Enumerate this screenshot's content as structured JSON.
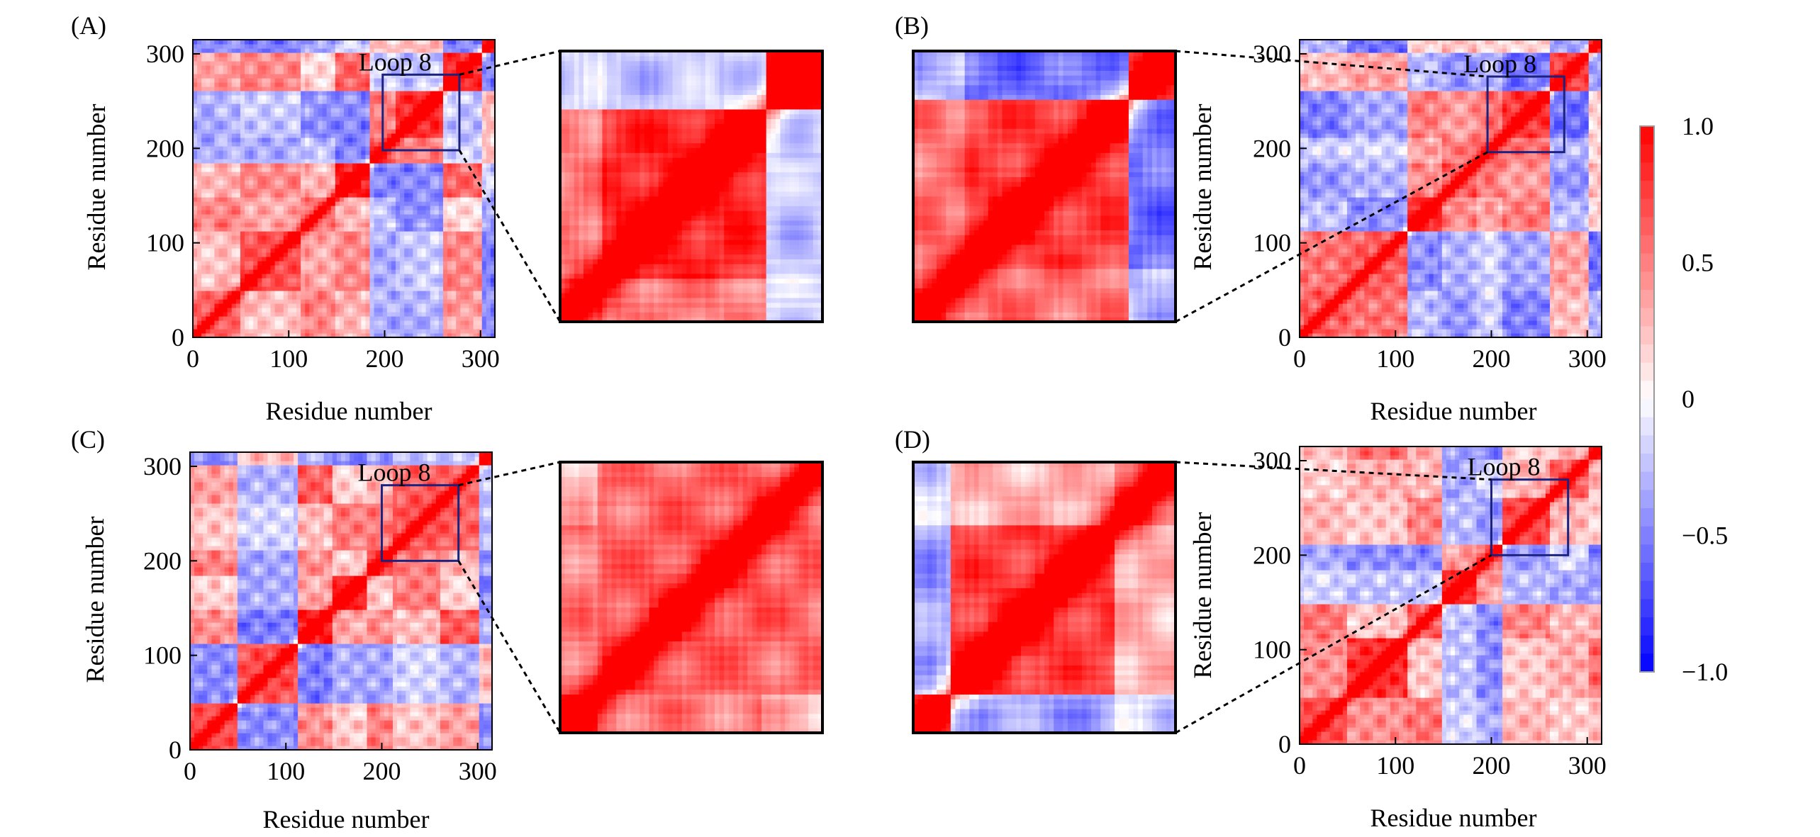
{
  "chart_data": {
    "type": "heatmap",
    "description_kind": "dynamic cross-correlation maps",
    "colorbar": {
      "min": -1.0,
      "max": 1.0,
      "ticks": [
        1.0,
        0.5,
        0,
        -0.5,
        -1.0
      ],
      "tick_labels": [
        "1.0",
        "0.5",
        "0",
        "−0.5",
        "−1.0"
      ],
      "low_color": "#0000ff",
      "mid_color": "#ffffff",
      "high_color": "#ff0000"
    },
    "panels": [
      {
        "label": "(A)",
        "xlabel": "Residue number",
        "ylabel": "Residue number",
        "xlim": [
          0,
          315
        ],
        "ylim": [
          0,
          315
        ],
        "xticks": [
          0,
          100,
          200,
          300
        ],
        "yticks": [
          0,
          100,
          200,
          300
        ],
        "roi_label": "Loop 8",
        "roi": [
          198,
          278
        ],
        "inset_side": "right",
        "seed": 11
      },
      {
        "label": "(B)",
        "xlabel": "Residue number",
        "ylabel": "Residue number",
        "xlim": [
          0,
          315
        ],
        "ylim": [
          0,
          315
        ],
        "xticks": [
          0,
          100,
          200,
          300
        ],
        "yticks": [
          0,
          100,
          200,
          300
        ],
        "roi_label": "Loop 8",
        "roi": [
          196,
          276
        ],
        "inset_side": "left",
        "seed": 23
      },
      {
        "label": "(C)",
        "xlabel": "Residue number",
        "ylabel": "Residue number",
        "xlim": [
          0,
          315
        ],
        "ylim": [
          0,
          315
        ],
        "xticks": [
          0,
          100,
          200,
          300
        ],
        "yticks": [
          0,
          100,
          200,
          300
        ],
        "roi_label": "Loop 8",
        "roi": [
          200,
          280
        ],
        "inset_side": "right",
        "seed": 37
      },
      {
        "label": "(D)",
        "xlabel": "Residue number",
        "ylabel": "Residue number",
        "xlim": [
          0,
          315
        ],
        "ylim": [
          0,
          315
        ],
        "xticks": [
          0,
          100,
          200,
          300
        ],
        "yticks": [
          0,
          100,
          200,
          300
        ],
        "roi_label": "Loop 8",
        "roi": [
          200,
          280
        ],
        "inset_side": "left",
        "seed": 53
      }
    ]
  }
}
